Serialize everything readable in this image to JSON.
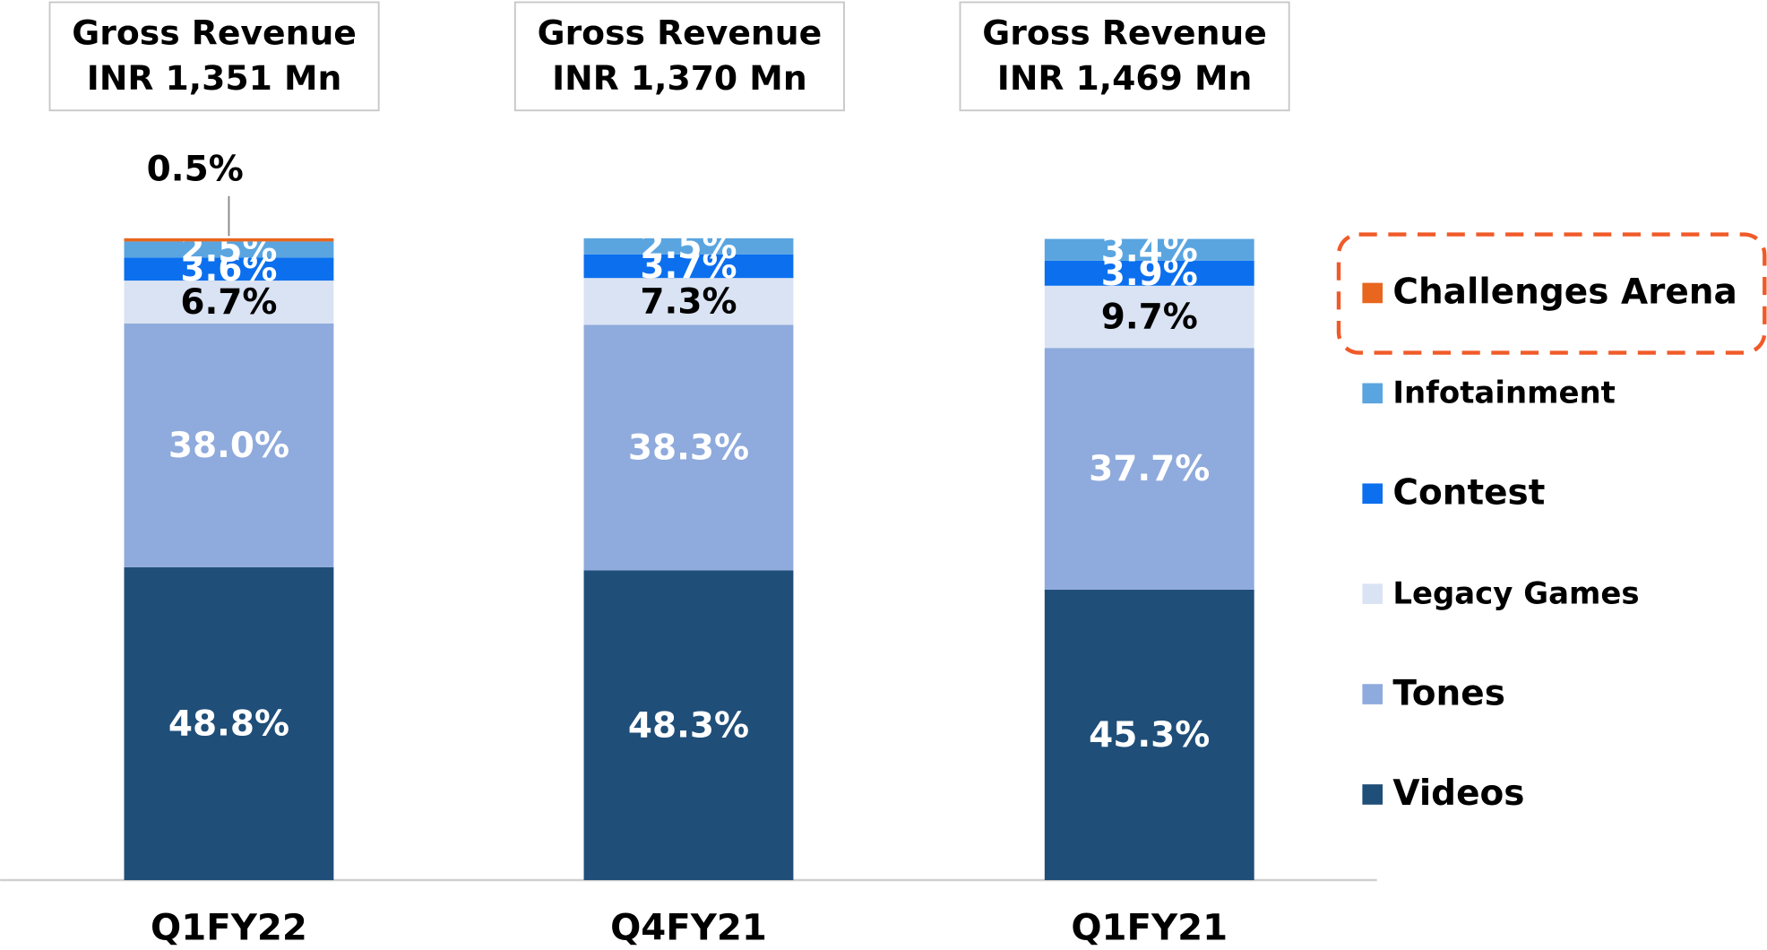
{
  "chart_data": {
    "type": "stacked_bar",
    "categories": [
      "Q1FY22",
      "Q4FY21",
      "Q1FY21"
    ],
    "annotations": [
      {
        "title": "Gross Revenue",
        "text": "INR 1,351 Mn"
      },
      {
        "title": "Gross Revenue",
        "text": "INR 1,370 Mn"
      },
      {
        "title": "Gross Revenue",
        "text": "INR 1,469 Mn"
      }
    ],
    "ylim": [
      0,
      100
    ],
    "highlight": "Challenges Arena",
    "series": [
      {
        "name": "Videos",
        "color": "#1f4e79",
        "values": [
          48.8,
          48.3,
          45.3
        ],
        "value_labels": [
          "48.8%",
          "48.3%",
          "45.3%"
        ]
      },
      {
        "name": "Tones",
        "color": "#8faadc",
        "values": [
          38.0,
          38.3,
          37.7
        ],
        "value_labels": [
          "38.0%",
          "38.3%",
          "37.7%"
        ]
      },
      {
        "name": "Legacy Games",
        "color": "#dae3f3",
        "values": [
          6.7,
          7.3,
          9.7
        ],
        "value_labels": [
          "6.7%",
          "7.3%",
          "9.7%"
        ]
      },
      {
        "name": "Contest",
        "color": "#0b6fee",
        "values": [
          3.6,
          3.7,
          3.9
        ],
        "value_labels": [
          "3.6%",
          "3.7%",
          "3.9%"
        ]
      },
      {
        "name": "Infotainment",
        "color": "#5aa5e0",
        "values": [
          2.5,
          2.5,
          3.4
        ],
        "value_labels": [
          "2.5%",
          "2.5%",
          "3.4%"
        ]
      },
      {
        "name": "Challenges Arena",
        "color": "#e8661e",
        "values": [
          0.5,
          null,
          null
        ],
        "value_labels": [
          "0.5%",
          null,
          null
        ]
      }
    ]
  }
}
